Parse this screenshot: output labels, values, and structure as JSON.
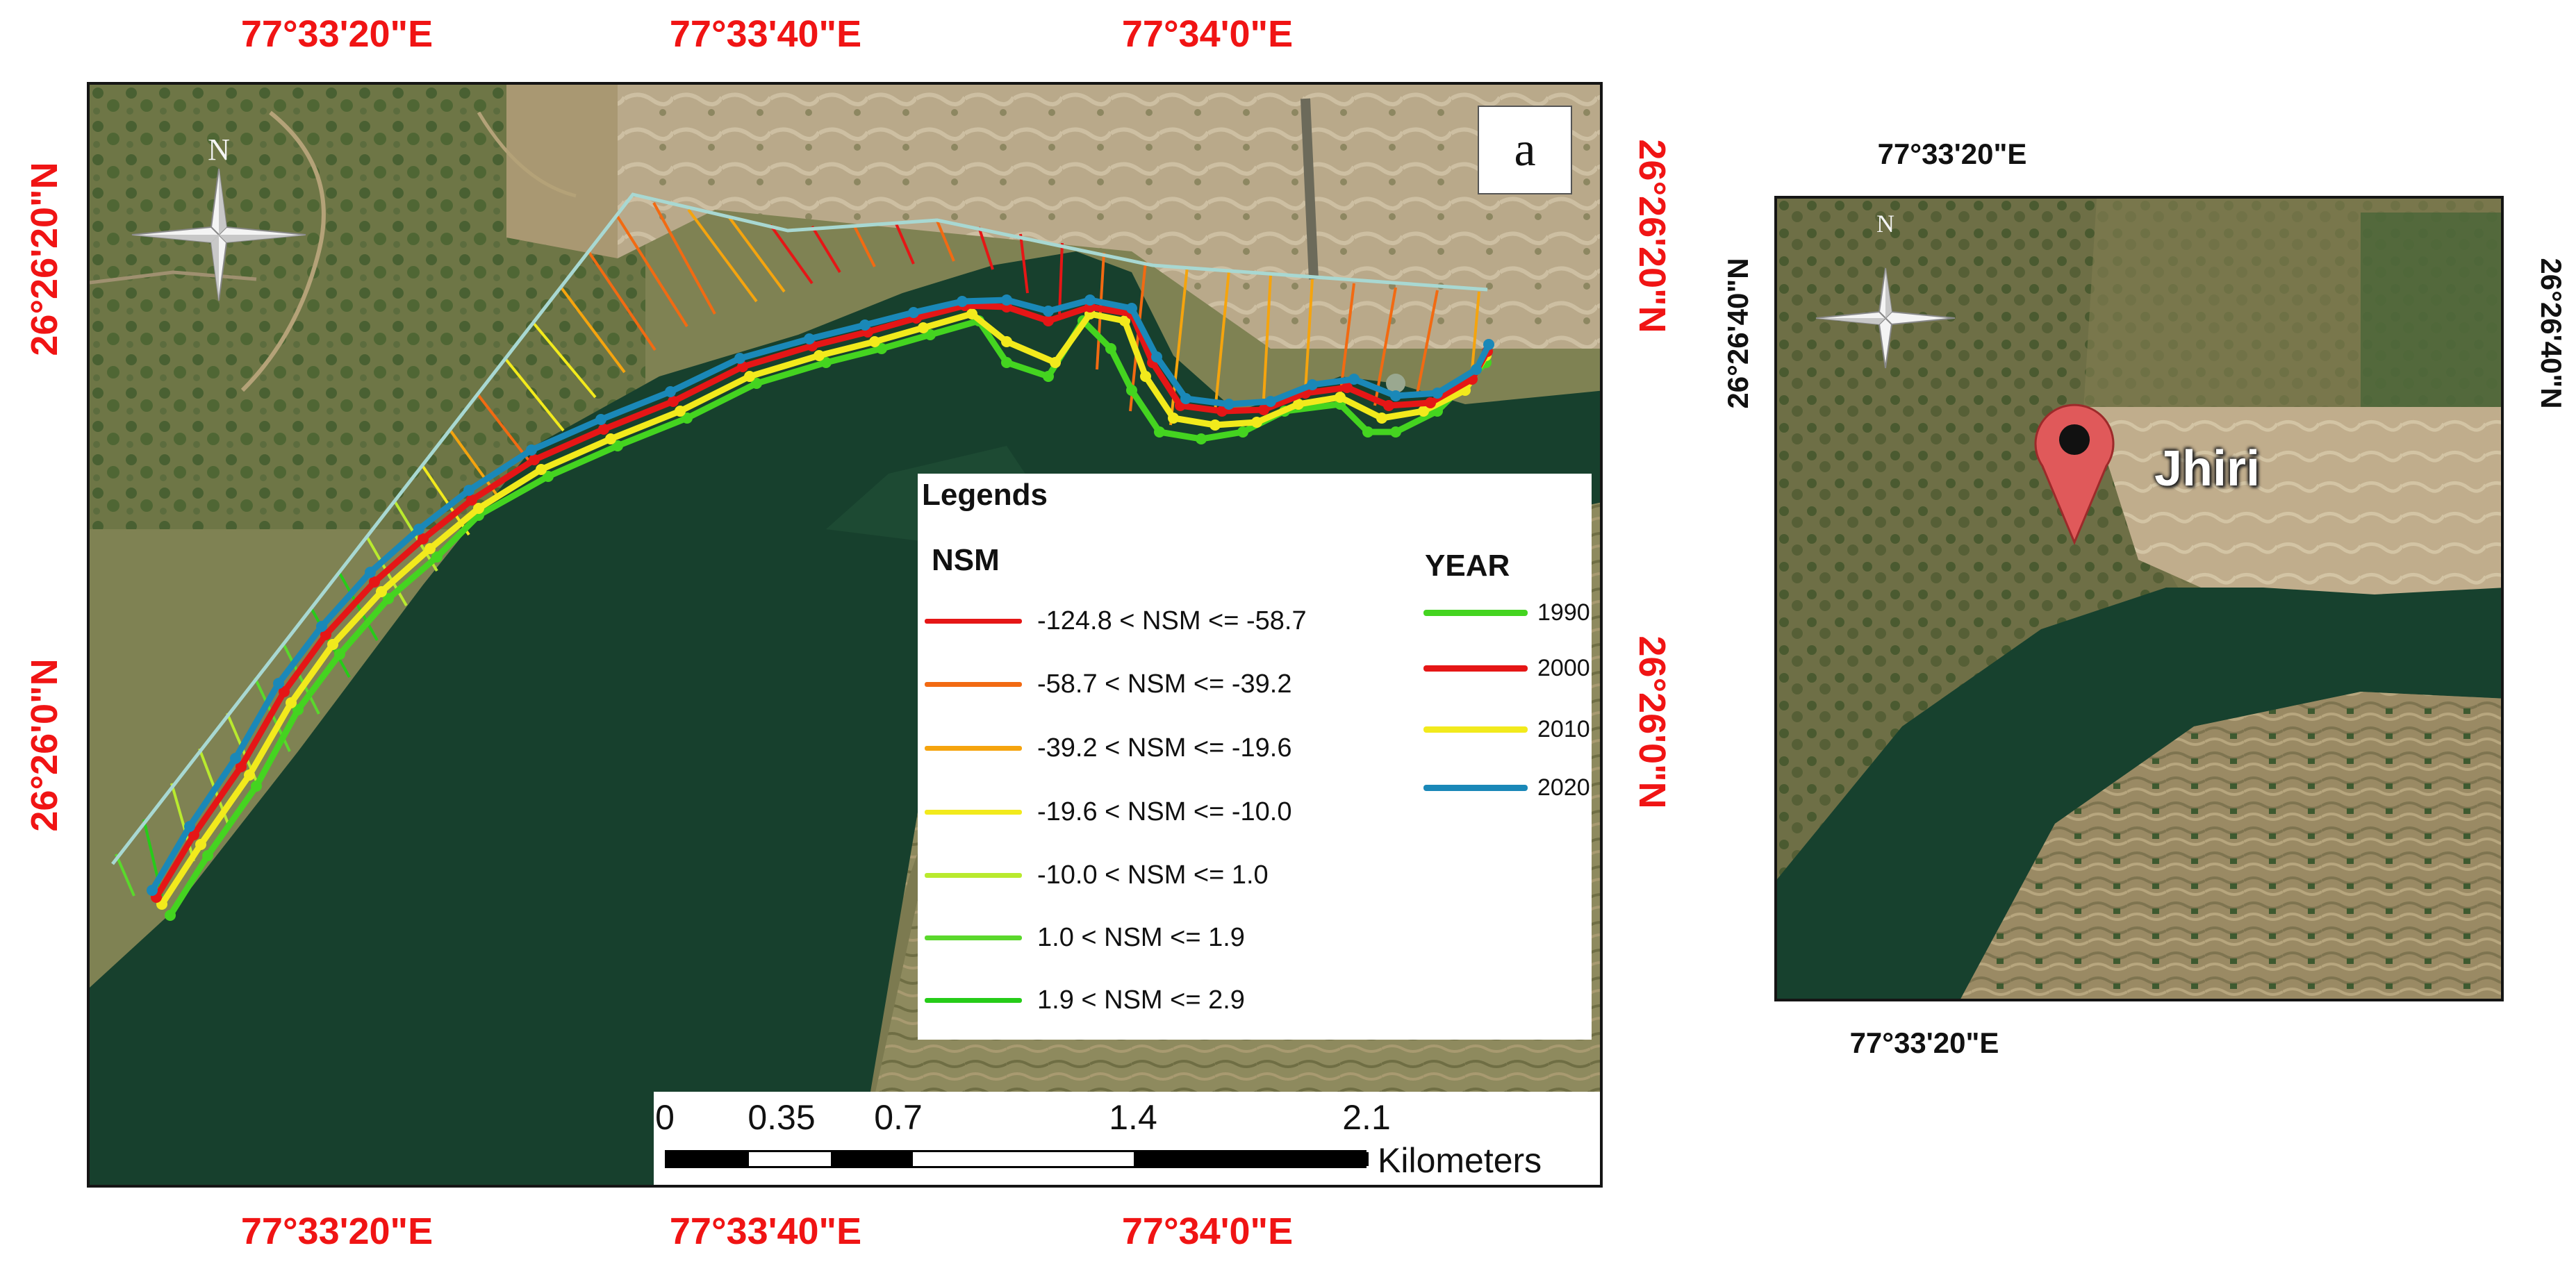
{
  "main_map": {
    "panel_label": "a",
    "top_coords": [
      "77°33'20\"E",
      "77°33'40\"E",
      "77°34'0\"E"
    ],
    "bottom_coords": [
      "77°33'20\"E",
      "77°33'40\"E",
      "77°34'0\"E"
    ],
    "left_coords": [
      "26°26'20\"N",
      "26°26'0\"N"
    ],
    "right_coords": [
      "26°26'20\"N",
      "26°26'0\"N"
    ],
    "north_label": "N",
    "legend": {
      "title": "Legends",
      "nsm_heading": "NSM",
      "year_heading": "YEAR",
      "nsm_classes": [
        {
          "label": "-124.8 < NSM <= -58.7",
          "color": "#e51616"
        },
        {
          "label": "-58.7 < NSM <= -39.2",
          "color": "#f26a12"
        },
        {
          "label": "-39.2 < NSM <= -19.6",
          "color": "#f5a40e"
        },
        {
          "label": "-19.6 < NSM <= -10.0",
          "color": "#f2ea1c"
        },
        {
          "label": "-10.0 < NSM <= 1.0",
          "color": "#b9ea2e"
        },
        {
          "label": "1.0 < NSM <= 1.9",
          "color": "#5ad82c"
        },
        {
          "label": "1.9 < NSM <= 2.9",
          "color": "#26cc18"
        }
      ],
      "years": [
        {
          "label": "1990",
          "color": "#44d420"
        },
        {
          "label": "2000",
          "color": "#e51616"
        },
        {
          "label": "2010",
          "color": "#f2ea1c"
        },
        {
          "label": "2020",
          "color": "#1a88b8"
        }
      ]
    },
    "scale_bar": {
      "ticks": [
        "0",
        "0.35",
        "0.7",
        "1.4",
        "2.1"
      ],
      "unit": "Kilometers"
    }
  },
  "inset_map": {
    "top_coord": "77°33'20\"E",
    "bottom_coord": "77°33'20\"E",
    "left_coord": "26°26'40\"N",
    "right_coord": "26°26'40\"N",
    "north_label": "N",
    "place_label": "Jhiri"
  },
  "colors": {
    "coord_text": "#f01414",
    "water": "#16402c",
    "land": "#8a8a5c",
    "baseline": "#9fd2cc"
  }
}
